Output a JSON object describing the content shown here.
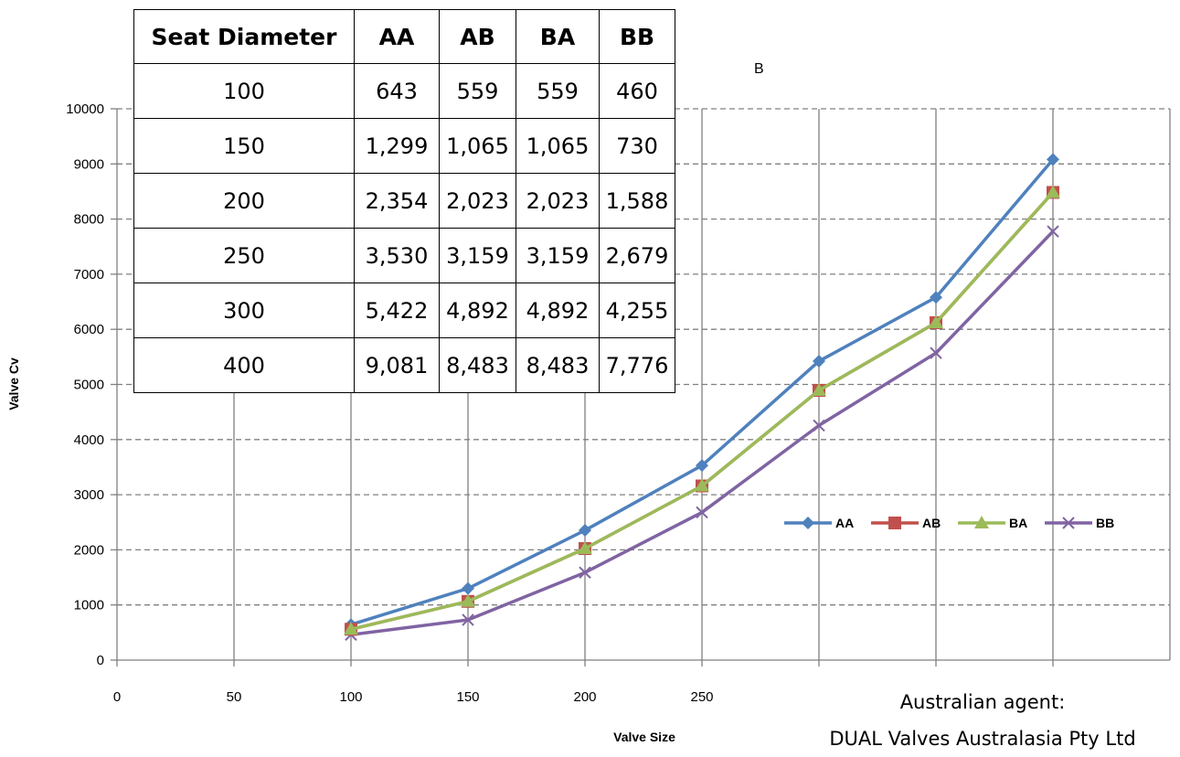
{
  "chart_data": {
    "type": "line",
    "xlabel": "Valve Size",
    "ylabel": "Valve Cv",
    "xlim": [
      0,
      450
    ],
    "ylim": [
      0,
      10000
    ],
    "x_ticks": [
      0,
      50,
      100,
      150,
      200,
      250
    ],
    "y_ticks": [
      0,
      1000,
      2000,
      3000,
      4000,
      5000,
      6000,
      7000,
      8000,
      9000,
      10000
    ],
    "x_grid_lines": [
      50,
      100,
      150,
      200,
      250,
      300,
      350,
      400
    ],
    "grid": true,
    "legend_position": "right-middle",
    "x": [
      100,
      150,
      200,
      250,
      300,
      350,
      400
    ],
    "series": [
      {
        "name": "AA",
        "color": "#4F81BD",
        "marker": "diamond",
        "values": [
          643,
          1299,
          2354,
          3530,
          5422,
          6580,
          9081
        ]
      },
      {
        "name": "AB",
        "color": "#C0504D",
        "marker": "square",
        "values": [
          559,
          1065,
          2023,
          3159,
          4892,
          6120,
          8483
        ]
      },
      {
        "name": "BA",
        "color": "#9BBB59",
        "marker": "triangle",
        "values": [
          559,
          1065,
          2023,
          3159,
          4892,
          6120,
          8483
        ]
      },
      {
        "name": "BB",
        "color": "#8064A2",
        "marker": "x",
        "values": [
          460,
          730,
          1588,
          2679,
          4255,
          5570,
          7776
        ]
      }
    ]
  },
  "table": {
    "headers": [
      "Seat Diameter",
      "AA",
      "AB",
      "BA",
      "BB"
    ],
    "rows": [
      [
        "100",
        "643",
        "559",
        "559",
        "460"
      ],
      [
        "150",
        "1,299",
        "1,065",
        "1,065",
        "730"
      ],
      [
        "200",
        "2,354",
        "2,023",
        "2,023",
        "1,588"
      ],
      [
        "250",
        "3,530",
        "3,159",
        "3,159",
        "2,679"
      ],
      [
        "300",
        "5,422",
        "4,892",
        "4,892",
        "4,255"
      ],
      [
        "400",
        "9,081",
        "8,483",
        "8,483",
        "7,776"
      ]
    ]
  },
  "stray_text": "B",
  "agent": {
    "line1": "Australian agent:",
    "line2": "DUAL Valves Australasia Pty Ltd"
  }
}
